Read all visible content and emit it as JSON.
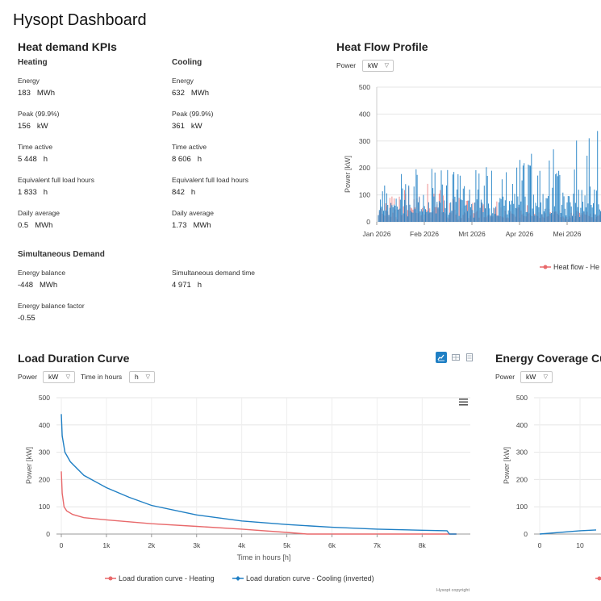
{
  "app_title": "Hysopt Dashboard",
  "kpi": {
    "title": "Heat demand KPIs",
    "heating": {
      "header": "Heating",
      "items": [
        {
          "label": "Energy",
          "value": "183",
          "unit": "MWh"
        },
        {
          "label": "Peak (99.9%)",
          "value": "156",
          "unit": "kW"
        },
        {
          "label": "Time active",
          "value": "5 448",
          "unit": "h"
        },
        {
          "label": "Equivalent full load hours",
          "value": "1 833",
          "unit": "h"
        },
        {
          "label": "Daily average",
          "value": "0.5",
          "unit": "MWh"
        }
      ]
    },
    "cooling": {
      "header": "Cooling",
      "items": [
        {
          "label": "Energy",
          "value": "632",
          "unit": "MWh"
        },
        {
          "label": "Peak (99.9%)",
          "value": "361",
          "unit": "kW"
        },
        {
          "label": "Time active",
          "value": "8 606",
          "unit": "h"
        },
        {
          "label": "Equivalent full load hours",
          "value": "842",
          "unit": "h"
        },
        {
          "label": "Daily average",
          "value": "1.73",
          "unit": "MWh"
        }
      ]
    },
    "simultaneous": {
      "header": "Simultaneous Demand",
      "energy_balance": {
        "label": "Energy balance",
        "value": "-448",
        "unit": "MWh"
      },
      "demand_time": {
        "label": "Simultaneous demand time",
        "value": "4 971",
        "unit": "h"
      },
      "balance_factor": {
        "label": "Energy balance factor",
        "value": "-0.55",
        "unit": ""
      }
    }
  },
  "heat_flow": {
    "title": "Heat Flow Profile",
    "power_label": "Power",
    "power_unit": "kW",
    "legend_heating": "Heat flow - He"
  },
  "load_duration": {
    "title": "Load Duration Curve",
    "power_label": "Power",
    "power_unit": "kW",
    "time_label": "Time in hours",
    "time_unit": "h",
    "credit": "Hysopt copyright"
  },
  "energy_coverage": {
    "title": "Energy Coverage Cur",
    "power_label": "Power",
    "power_unit": "kW"
  },
  "colors": {
    "heating": "#e8696b",
    "cooling": "#1f7fc4",
    "active_icon": "#1f7fc4"
  },
  "chart_data": [
    {
      "type": "line",
      "name": "heat-flow-profile",
      "ylabel": "Power [kW]",
      "ylim": [
        0,
        500
      ],
      "y_ticks": [
        0,
        100,
        200,
        300,
        400,
        500
      ],
      "x_ticks": [
        "Jan 2026",
        "Feb 2026",
        "Mrt 2026",
        "Apr 2026",
        "Mei 2026"
      ],
      "x_months": [
        1,
        2,
        3,
        4,
        5
      ],
      "series": [
        {
          "name": "Heat flow - He",
          "profile_by_month": [
            {
              "x": 1.0,
              "low": 0,
              "high": 140
            },
            {
              "x": 1.5,
              "low": 0,
              "high": 120
            },
            {
              "x": 2.0,
              "low": 0,
              "high": 150
            },
            {
              "x": 2.5,
              "low": 0,
              "high": 115
            },
            {
              "x": 3.0,
              "low": 0,
              "high": 100
            },
            {
              "x": 3.5,
              "low": 0,
              "high": 85
            },
            {
              "x": 4.0,
              "low": 0,
              "high": 70
            },
            {
              "x": 4.5,
              "low": 0,
              "high": 55
            },
            {
              "x": 5.0,
              "low": 0,
              "high": 45
            },
            {
              "x": 5.5,
              "low": 0,
              "high": 40
            }
          ]
        },
        {
          "name": "",
          "profile_by_month": [
            {
              "x": 1.0,
              "low": 0,
              "high": 110
            },
            {
              "x": 1.5,
              "low": 0,
              "high": 190
            },
            {
              "x": 2.0,
              "low": 0,
              "high": 200
            },
            {
              "x": 2.5,
              "low": 0,
              "high": 200
            },
            {
              "x": 3.0,
              "low": 0,
              "high": 190
            },
            {
              "x": 3.5,
              "low": 0,
              "high": 220
            },
            {
              "x": 4.0,
              "low": 0,
              "high": 240
            },
            {
              "x": 4.5,
              "low": 0,
              "high": 270
            },
            {
              "x": 5.0,
              "low": 0,
              "high": 290
            },
            {
              "x": 5.5,
              "low": 0,
              "high": 340
            }
          ]
        }
      ]
    },
    {
      "type": "line",
      "name": "load-duration-curve",
      "xlabel": "Time in hours [h]",
      "ylabel": "Power [kW]",
      "xlim": [
        0,
        8760
      ],
      "ylim": [
        0,
        500
      ],
      "x_ticks": [
        "0",
        "1k",
        "2k",
        "3k",
        "4k",
        "5k",
        "6k",
        "7k",
        "8k"
      ],
      "x_tick_values": [
        0,
        1000,
        2000,
        3000,
        4000,
        5000,
        6000,
        7000,
        8000
      ],
      "y_ticks": [
        0,
        100,
        200,
        300,
        400,
        500
      ],
      "series": [
        {
          "name": "Load duration curve - Heating",
          "x": [
            0,
            20,
            60,
            120,
            250,
            500,
            1000,
            1500,
            2000,
            3000,
            4000,
            5000,
            5448,
            6000,
            8760
          ],
          "y": [
            230,
            150,
            100,
            85,
            72,
            60,
            52,
            45,
            38,
            28,
            18,
            6,
            0,
            0,
            0
          ]
        },
        {
          "name": "Load duration curve - Cooling (inverted)",
          "x": [
            0,
            20,
            80,
            200,
            500,
            1000,
            1500,
            2000,
            3000,
            4000,
            5000,
            6000,
            7000,
            8000,
            8550,
            8606,
            8760
          ],
          "y": [
            440,
            360,
            300,
            265,
            215,
            170,
            135,
            105,
            70,
            48,
            35,
            25,
            18,
            14,
            12,
            0,
            0
          ]
        }
      ]
    },
    {
      "type": "line",
      "name": "energy-coverage-curve",
      "ylabel": "Power [kW]",
      "ylim": [
        0,
        500
      ],
      "y_ticks": [
        0,
        100,
        200,
        300,
        400,
        500
      ],
      "x_ticks": [
        "0",
        "10"
      ],
      "x_tick_values": [
        0,
        10
      ],
      "series": [
        {
          "name": "",
          "x": [
            0,
            10,
            14
          ],
          "y": [
            0,
            12,
            15
          ]
        }
      ]
    }
  ]
}
